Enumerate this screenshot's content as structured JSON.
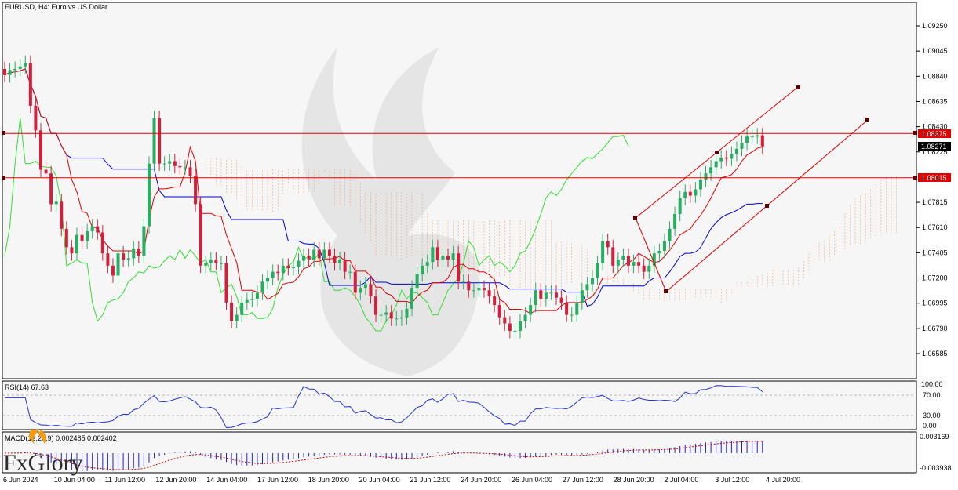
{
  "chart_title": "EURUSD, H4:  Euro vs US Dollar",
  "colors": {
    "up": "#27ae60",
    "down": "#d0203c",
    "red_line": "#e00000",
    "kijun": "#0000d0",
    "tenkan": "#e00000",
    "chikou": "#33dd33",
    "cloud": "#f0a070",
    "rsi": "#2233cc",
    "macd_hist": "#2222cc",
    "macd_signal": "#cc0000"
  },
  "price_axis": {
    "labels": [
      "1.09250",
      "1.09045",
      "1.08840",
      "1.08635",
      "1.08430",
      "1.08225",
      "1.07815",
      "1.07610",
      "1.07405",
      "1.07200",
      "1.06995",
      "1.06790",
      "1.06585"
    ],
    "ylim": [
      1.0645,
      1.0935
    ]
  },
  "price_tags": {
    "current": {
      "label": "1.08271",
      "value": 1.08271
    },
    "upper_level": {
      "label": "1.08375",
      "value": 1.08375
    },
    "lower_level": {
      "label": "1.08015",
      "value": 1.08015
    }
  },
  "time_axis": {
    "labels": [
      "6 Jun 2024",
      "10 Jun 04:00",
      "11 Jun 12:00",
      "12 Jun 20:00",
      "14 Jun 04:00",
      "17 Jun 12:00",
      "18 Jun 20:00",
      "20 Jun 04:00",
      "21 Jun 12:00",
      "24 Jun 20:00",
      "26 Jun 04:00",
      "27 Jun 12:00",
      "28 Jun 20:00",
      "2 Jul 04:00",
      "3 Jul 12:00",
      "4 Jul 20:00"
    ]
  },
  "rsi_panel": {
    "title": "RSI(14) 67.63",
    "labels": [
      "100.00",
      "70.00",
      "30.00",
      "0.00"
    ]
  },
  "macd_panel": {
    "title": "MACD(12,26,9) 0.002485 0.002402",
    "labels": [
      "0.003169",
      "-0.003938"
    ]
  },
  "logo": {
    "text": "FxGlory"
  },
  "chart_data": {
    "type": "candlestick",
    "title": "EURUSD, H4:  Euro vs US Dollar",
    "ohlc_close": [
      1.0885,
      1.0889,
      1.089,
      1.0892,
      1.0895,
      1.086,
      1.084,
      1.0808,
      1.0805,
      1.078,
      1.0782,
      1.076,
      1.0745,
      1.074,
      1.0755,
      1.075,
      1.0758,
      1.0762,
      1.0757,
      1.074,
      1.073,
      1.0722,
      1.074,
      1.0735,
      1.0736,
      1.0744,
      1.0738,
      1.0762,
      1.0813,
      1.085,
      1.0813,
      1.0813,
      1.0815,
      1.0811,
      1.081,
      1.081,
      1.0803,
      1.078,
      1.073,
      1.0732,
      1.0735,
      1.0732,
      1.0732,
      1.07,
      1.0685,
      1.069,
      1.07,
      1.0702,
      1.0703,
      1.0708,
      1.0717,
      1.072,
      1.0725,
      1.0724,
      1.073,
      1.0728,
      1.0729,
      1.0734,
      1.0738,
      1.0735,
      1.0743,
      1.0736,
      1.0743,
      1.0738,
      1.0732,
      1.0735,
      1.0725,
      1.0725,
      1.0708,
      1.0712,
      1.0715,
      1.0705,
      1.069,
      1.069,
      1.0692,
      1.0687,
      1.0687,
      1.0688,
      1.0695,
      1.0712,
      1.0723,
      1.073,
      1.0733,
      1.0745,
      1.0735,
      1.0738,
      1.0735,
      1.074,
      1.0717,
      1.0717,
      1.071,
      1.071,
      1.0712,
      1.071,
      1.0705,
      1.0698,
      1.0688,
      1.0683,
      1.0677,
      1.0677,
      1.0685,
      1.069,
      1.0698,
      1.071,
      1.0703,
      1.0708,
      1.0708,
      1.0704,
      1.07,
      1.069,
      1.069,
      1.07,
      1.071,
      1.0715,
      1.072,
      1.0732,
      1.075,
      1.0745,
      1.073,
      1.0735,
      1.0738,
      1.073,
      1.0733,
      1.073,
      1.0725,
      1.073,
      1.074,
      1.0742,
      1.075,
      1.076,
      1.0772,
      1.0785,
      1.079,
      1.0787,
      1.0792,
      1.08,
      1.0805,
      1.081,
      1.0815,
      1.0818,
      1.0817,
      1.0821,
      1.0825,
      1.083,
      1.0835,
      1.0835,
      1.0836,
      1.0827
    ],
    "resistance_level": 1.08375,
    "support_level": 1.08015,
    "series": [
      {
        "name": "RSI(14)",
        "last": 67.63
      },
      {
        "name": "MACD main",
        "last": 0.002485
      },
      {
        "name": "MACD signal",
        "last": 0.002402
      }
    ]
  }
}
